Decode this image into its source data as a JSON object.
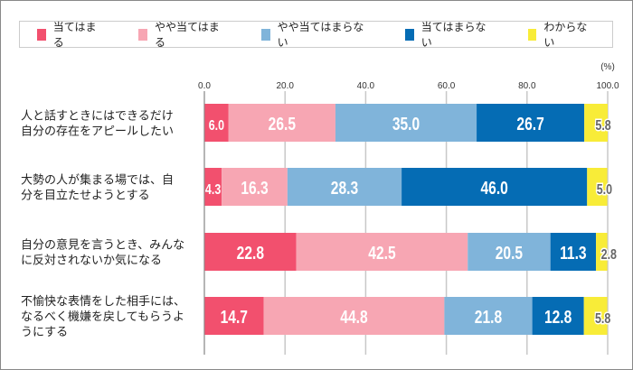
{
  "chart_data": {
    "type": "bar",
    "orientation": "horizontal",
    "stacked": true,
    "unit_label": "(%)",
    "xlim": [
      0,
      100
    ],
    "ticks": [
      "0.0",
      "20.0",
      "40.0",
      "60.0",
      "80.0",
      "100.0"
    ],
    "grid": true,
    "legend_position": "top",
    "categories": [
      [
        "人と話すときにはできるだけ",
        "自分の存在をアピールしたい"
      ],
      [
        "大勢の人が集まる場では、自",
        "分を目立たせようとする"
      ],
      [
        "自分の意見を言うとき、みんな",
        "に反対されないか気になる"
      ],
      [
        "不愉快な表情をした相手には、",
        "なるべく機嫌を戻してもらうよ",
        "うにする"
      ]
    ],
    "series": [
      {
        "name": "当てはまる",
        "color": "#f2506e",
        "values": [
          6.0,
          4.3,
          22.8,
          14.7
        ]
      },
      {
        "name": "やや当てはまる",
        "color": "#f7a6b3",
        "values": [
          26.5,
          16.3,
          42.5,
          44.8
        ]
      },
      {
        "name": "やや当てはまらない",
        "color": "#80b4da",
        "values": [
          35.0,
          28.3,
          20.5,
          21.8
        ]
      },
      {
        "name": "当てはまらない",
        "color": "#056cb4",
        "values": [
          26.7,
          46.0,
          11.3,
          12.8
        ]
      },
      {
        "name": "わからない",
        "color": "#f8ec38",
        "values": [
          5.8,
          5.0,
          2.8,
          5.8
        ]
      }
    ]
  }
}
